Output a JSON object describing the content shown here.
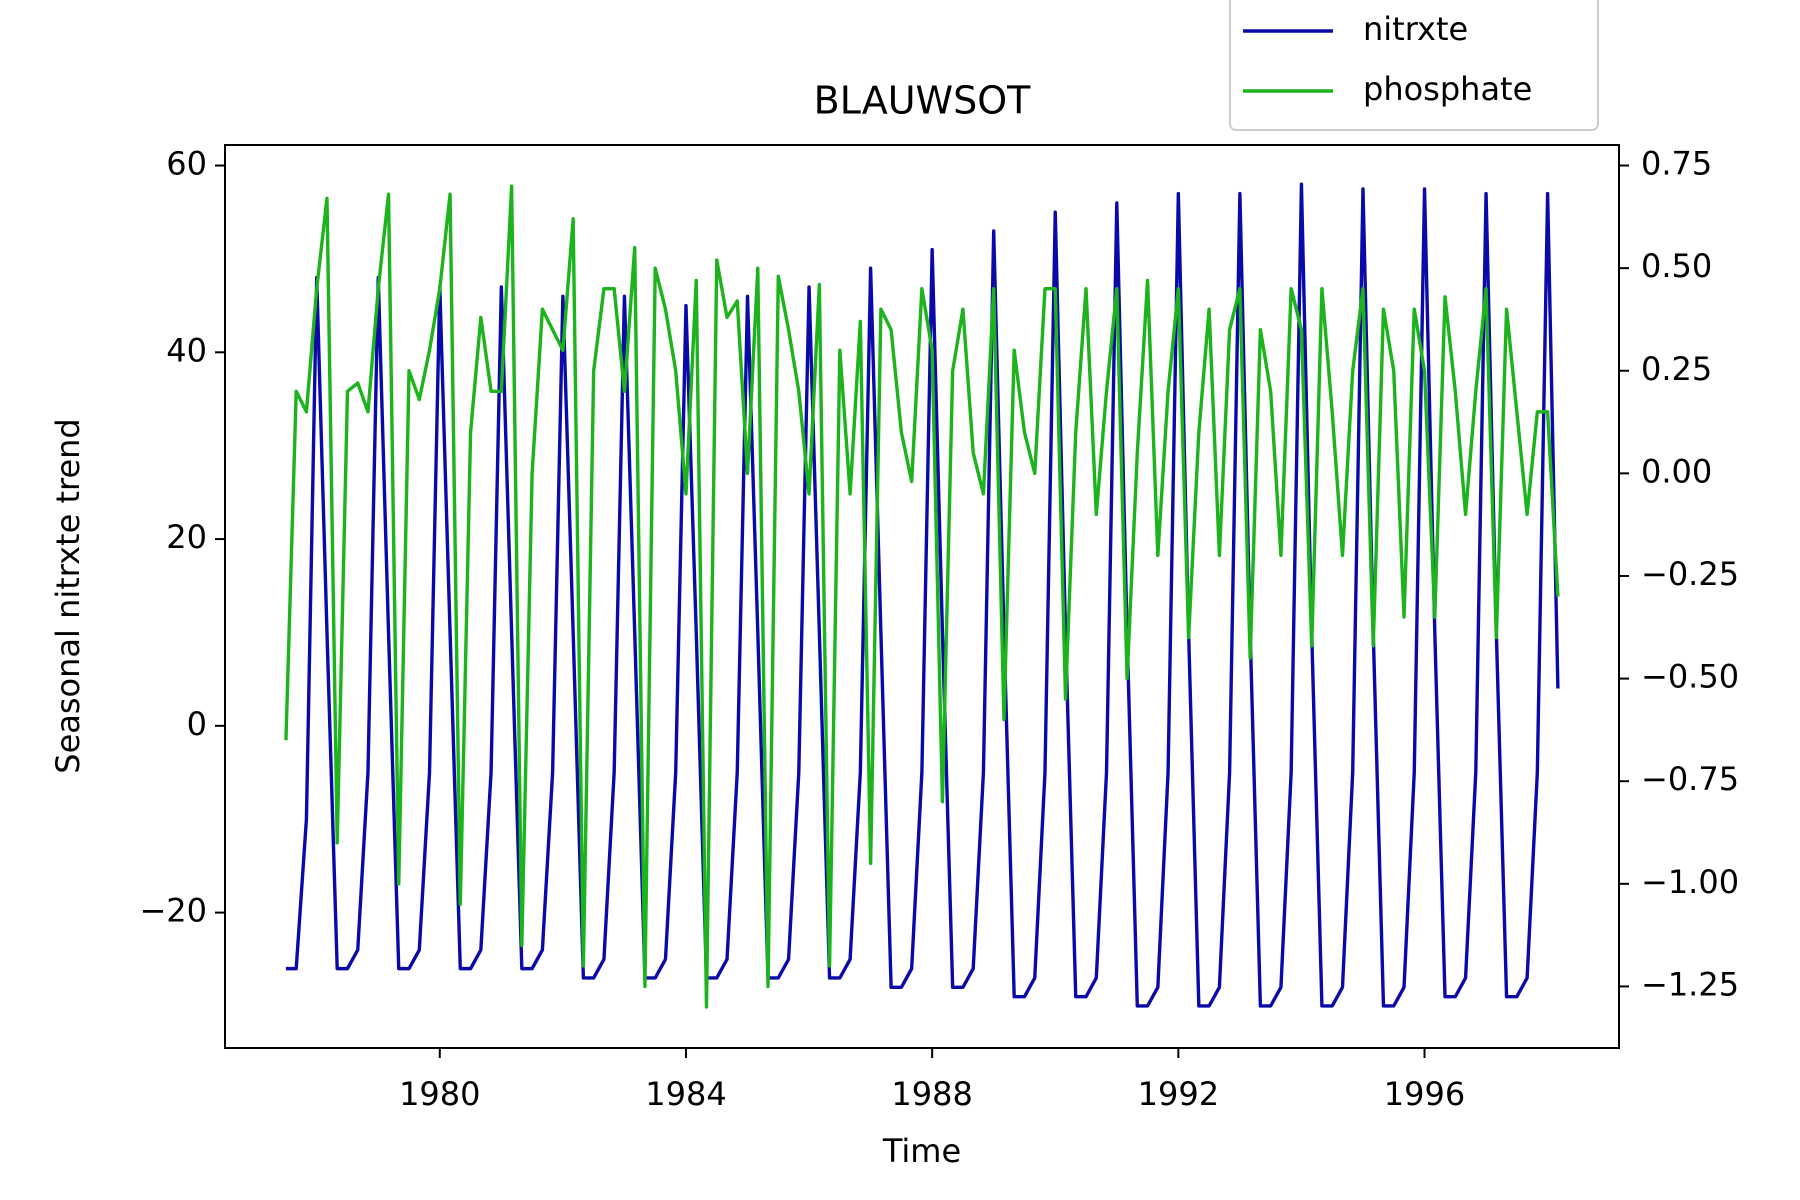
{
  "chart_data": {
    "type": "line",
    "title": "BLAUWSOT",
    "x_label": "Time",
    "y_label": "Seasonal nitrxte trend",
    "x": [
      1977.5,
      1977.667,
      1977.833,
      1978,
      1978.167,
      1978.333,
      1978.5,
      1978.667,
      1978.833,
      1979,
      1979.167,
      1979.333,
      1979.5,
      1979.667,
      1979.833,
      1980,
      1980.167,
      1980.333,
      1980.5,
      1980.667,
      1980.833,
      1981,
      1981.167,
      1981.333,
      1981.5,
      1981.667,
      1981.833,
      1982,
      1982.167,
      1982.333,
      1982.5,
      1982.667,
      1982.833,
      1983,
      1983.167,
      1983.333,
      1983.5,
      1983.667,
      1983.833,
      1984,
      1984.167,
      1984.333,
      1984.5,
      1984.667,
      1984.833,
      1985,
      1985.167,
      1985.333,
      1985.5,
      1985.667,
      1985.833,
      1986,
      1986.167,
      1986.333,
      1986.5,
      1986.667,
      1986.833,
      1987,
      1987.167,
      1987.333,
      1987.5,
      1987.667,
      1987.833,
      1988,
      1988.167,
      1988.333,
      1988.5,
      1988.667,
      1988.833,
      1989,
      1989.167,
      1989.333,
      1989.5,
      1989.667,
      1989.833,
      1990,
      1990.167,
      1990.333,
      1990.5,
      1990.667,
      1990.833,
      1991,
      1991.167,
      1991.333,
      1991.5,
      1991.667,
      1991.833,
      1992,
      1992.167,
      1992.333,
      1992.5,
      1992.667,
      1992.833,
      1993,
      1993.167,
      1993.333,
      1993.5,
      1993.667,
      1993.833,
      1994,
      1994.167,
      1994.333,
      1994.5,
      1994.667,
      1994.833,
      1995,
      1995.167,
      1995.333,
      1995.5,
      1995.667,
      1995.833,
      1996,
      1996.167,
      1996.333,
      1996.5,
      1996.667,
      1996.833,
      1997,
      1997.167,
      1997.333,
      1997.5,
      1997.667,
      1997.833,
      1998,
      1998.167
    ],
    "series": [
      {
        "name": "nitrxte",
        "color": "#0a0aa8",
        "values": [
          -26,
          -26,
          -10,
          48,
          10,
          -26,
          -26,
          -24,
          -5,
          48,
          10,
          -26,
          -26,
          -24,
          -5,
          47,
          10,
          -26,
          -26,
          -24,
          -5,
          47,
          10,
          -26,
          -26,
          -24,
          -5,
          46,
          10,
          -27,
          -27,
          -25,
          -5,
          46,
          10,
          -27,
          -27,
          -25,
          -5,
          45,
          10,
          -27,
          -27,
          -25,
          -5,
          46,
          10,
          -27,
          -27,
          -25,
          -5,
          47,
          10,
          -27,
          -27,
          -25,
          -5,
          49,
          10,
          -28,
          -28,
          -26,
          -5,
          51,
          10,
          -28,
          -28,
          -26,
          -5,
          53,
          10,
          -29,
          -29,
          -27,
          -5,
          55,
          10,
          -29,
          -29,
          -27,
          -5,
          56,
          10,
          -30,
          -30,
          -28,
          -5,
          57,
          10,
          -30,
          -30,
          -28,
          -5,
          57,
          10,
          -30,
          -30,
          -28,
          -5,
          58,
          10,
          -30,
          -30,
          -28,
          -5,
          57.5,
          10,
          -30,
          -30,
          -28,
          -5,
          57.5,
          10,
          -29,
          -29,
          -27,
          -5,
          57,
          10,
          -29,
          -29,
          -27,
          -5,
          57,
          4
        ]
      },
      {
        "name": "phosphate",
        "color": "#1db31d",
        "axis": "y2",
        "values": [
          -0.65,
          0.2,
          0.15,
          0.45,
          0.67,
          -0.9,
          0.2,
          0.22,
          0.15,
          0.45,
          0.68,
          -1.0,
          0.25,
          0.18,
          0.3,
          0.45,
          0.68,
          -1.05,
          0.1,
          0.38,
          0.2,
          0.2,
          0.7,
          -1.15,
          0.0,
          0.4,
          0.35,
          0.3,
          0.62,
          -1.2,
          0.25,
          0.45,
          0.45,
          0.2,
          0.55,
          -1.25,
          0.5,
          0.4,
          0.25,
          -0.05,
          0.47,
          -1.3,
          0.52,
          0.38,
          0.42,
          0.0,
          0.5,
          -1.25,
          0.48,
          0.35,
          0.2,
          -0.05,
          0.46,
          -1.2,
          0.3,
          -0.05,
          0.37,
          -0.95,
          0.4,
          0.35,
          0.1,
          -0.02,
          0.45,
          0.3,
          -0.8,
          0.25,
          0.4,
          0.05,
          -0.05,
          0.45,
          -0.6,
          0.3,
          0.1,
          0.0,
          0.45,
          0.45,
          -0.55,
          0.1,
          0.45,
          -0.1,
          0.2,
          0.45,
          -0.5,
          0.05,
          0.47,
          -0.2,
          0.2,
          0.45,
          -0.4,
          0.1,
          0.4,
          -0.2,
          0.35,
          0.45,
          -0.45,
          0.35,
          0.2,
          -0.2,
          0.45,
          0.35,
          -0.42,
          0.45,
          0.15,
          -0.2,
          0.25,
          0.45,
          -0.42,
          0.4,
          0.25,
          -0.35,
          0.4,
          0.25,
          -0.35,
          0.43,
          0.2,
          -0.1,
          0.2,
          0.45,
          -0.4,
          0.4,
          0.15,
          -0.1,
          0.15,
          0.15,
          -0.3
        ]
      }
    ],
    "xlim": [
      1976.51,
      1999.16
    ],
    "xticks": [
      1980,
      1984,
      1988,
      1992,
      1996
    ],
    "ylim": [
      -34.5,
      62.2
    ],
    "yticks": [
      {
        "value": -20,
        "label": "−20"
      },
      0,
      20,
      40,
      60
    ],
    "y2lim": [
      -1.4,
      0.8
    ],
    "y2ticks": [
      {
        "value": 0.75,
        "label": "0.75"
      },
      {
        "value": 0.5,
        "label": "0.50"
      },
      {
        "value": 0.25,
        "label": "0.25"
      },
      {
        "value": 0,
        "label": "0.00"
      },
      {
        "value": -0.25,
        "label": "−0.25"
      },
      {
        "value": -0.5,
        "label": "−0.50"
      },
      {
        "value": -0.75,
        "label": "−0.75"
      },
      {
        "value": -1,
        "label": "−1.00"
      },
      {
        "value": -1.25,
        "label": "−1.25"
      }
    ]
  }
}
